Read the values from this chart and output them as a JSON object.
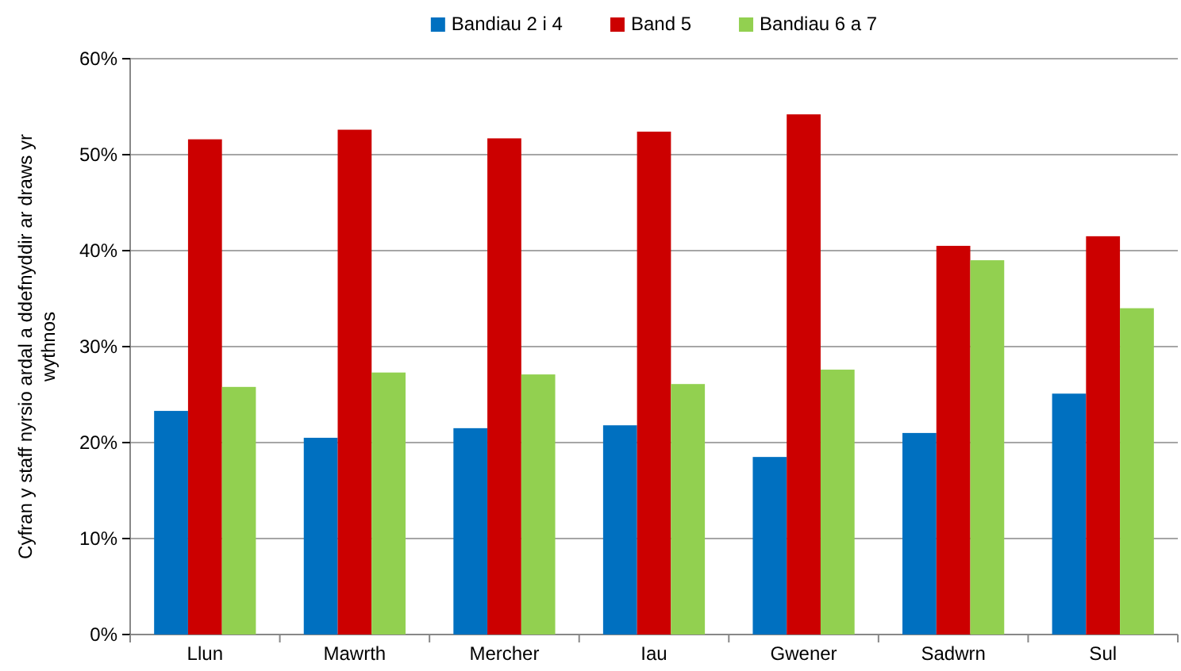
{
  "chart_data": {
    "type": "bar",
    "ylabel": "Cyfran y staff nyrsio ardal a ddefnyddir ar draws yr wythnos",
    "categories": [
      "Llun",
      "Mawrth",
      "Mercher",
      "Iau",
      "Gwener",
      "Sadwrn",
      "Sul"
    ],
    "series": [
      {
        "name": "Bandiau 2 i 4",
        "color": "#0070c0",
        "values": [
          23.3,
          20.5,
          21.5,
          21.8,
          18.5,
          21.0,
          25.1
        ]
      },
      {
        "name": "Band 5",
        "color": "#cc0000",
        "values": [
          51.6,
          52.6,
          51.7,
          52.4,
          54.2,
          40.5,
          41.5
        ]
      },
      {
        "name": "Bandiau 6 a 7",
        "color": "#92d050",
        "values": [
          25.8,
          27.3,
          27.1,
          26.1,
          27.6,
          39.0,
          34.0
        ]
      }
    ],
    "ylim": [
      0,
      60
    ],
    "yticks": [
      {
        "value": 0,
        "label": "0%"
      },
      {
        "value": 10,
        "label": "10%"
      },
      {
        "value": 20,
        "label": "20%"
      },
      {
        "value": 30,
        "label": "30%"
      },
      {
        "value": 40,
        "label": "40%"
      },
      {
        "value": 50,
        "label": "50%"
      },
      {
        "value": 60,
        "label": "60%"
      }
    ],
    "grid": "y",
    "legend": "top"
  }
}
